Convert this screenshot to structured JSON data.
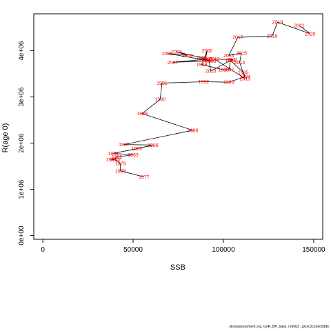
{
  "chart_data": {
    "type": "line",
    "xlabel": "SSB",
    "ylabel": "R(age 0)",
    "xlim": [
      -5000,
      155000
    ],
    "ylim": [
      -80000,
      4800000
    ],
    "x_ticks": [
      0,
      50000,
      100000,
      150000
    ],
    "x_tick_labels": [
      "0",
      "50000",
      "100000",
      "150000"
    ],
    "y_ticks": [
      0,
      1000000,
      2000000,
      3000000,
      4000000
    ],
    "y_tick_labels": [
      "0e+00",
      "1e+06",
      "2e+06",
      "3e+06",
      "4e+06"
    ],
    "grid": false,
    "line_color": "#000000",
    "label_color": "#ff0000",
    "points": [
      {
        "year": "1977",
        "x": 56000,
        "y": 1270000
      },
      {
        "year": "1978",
        "x": 43000,
        "y": 1400000
      },
      {
        "year": "1979",
        "x": 43000,
        "y": 1560000
      },
      {
        "year": "1980",
        "x": 40000,
        "y": 1650000
      },
      {
        "year": "1981",
        "x": 38000,
        "y": 1640000
      },
      {
        "year": "1982",
        "x": 41000,
        "y": 1700000
      },
      {
        "year": "1983",
        "x": 50000,
        "y": 1750000
      },
      {
        "year": "1984",
        "x": 39000,
        "y": 1780000
      },
      {
        "year": "1985",
        "x": 52000,
        "y": 1880000
      },
      {
        "year": "1986",
        "x": 61000,
        "y": 1960000
      },
      {
        "year": "1987",
        "x": 45000,
        "y": 1970000
      },
      {
        "year": "1988",
        "x": 83000,
        "y": 2280000
      },
      {
        "year": "1989",
        "x": 55000,
        "y": 2640000
      },
      {
        "year": "1990",
        "x": 65000,
        "y": 2950000
      },
      {
        "year": "1991",
        "x": 66000,
        "y": 3300000
      },
      {
        "year": "1992",
        "x": 89000,
        "y": 3330000
      },
      {
        "year": "1993",
        "x": 103000,
        "y": 3320000
      },
      {
        "year": "1994",
        "x": 112000,
        "y": 3440000
      },
      {
        "year": "1995",
        "x": 111000,
        "y": 3530000
      },
      {
        "year": "1996",
        "x": 104000,
        "y": 3790000
      },
      {
        "year": "1997",
        "x": 103000,
        "y": 3590000
      },
      {
        "year": "1998",
        "x": 100000,
        "y": 3590000
      },
      {
        "year": "1999",
        "x": 88000,
        "y": 3700000
      },
      {
        "year": "2000",
        "x": 91000,
        "y": 4000000
      },
      {
        "year": "2001",
        "x": 90000,
        "y": 3810000
      },
      {
        "year": "2002",
        "x": 88000,
        "y": 3850000
      },
      {
        "year": "2003",
        "x": 74000,
        "y": 3980000
      },
      {
        "year": "2004",
        "x": 80000,
        "y": 3900000
      },
      {
        "year": "2005",
        "x": 69000,
        "y": 3940000
      },
      {
        "year": "2006",
        "x": 93000,
        "y": 3780000
      },
      {
        "year": "2007",
        "x": 72000,
        "y": 3750000
      },
      {
        "year": "2008",
        "x": 91000,
        "y": 3820000
      },
      {
        "year": "2009",
        "x": 92000,
        "y": 3800000
      },
      {
        "year": "2010",
        "x": 93000,
        "y": 3560000
      },
      {
        "year": "2011",
        "x": 105000,
        "y": 3810000
      },
      {
        "year": "2012",
        "x": 95000,
        "y": 3820000
      },
      {
        "year": "2013",
        "x": 112000,
        "y": 3400000
      },
      {
        "year": "2014",
        "x": 109000,
        "y": 3750000
      },
      {
        "year": "2015",
        "x": 110000,
        "y": 3950000
      },
      {
        "year": "2016",
        "x": 103000,
        "y": 3900000
      },
      {
        "year": "2017",
        "x": 108000,
        "y": 4290000
      },
      {
        "year": "2018",
        "x": 127000,
        "y": 4320000
      },
      {
        "year": "2019",
        "x": 130000,
        "y": 4620000
      },
      {
        "year": "2020",
        "x": 148000,
        "y": 4370000
      },
      {
        "year": "2021",
        "x": 142000,
        "y": 4550000
      }
    ]
  },
  "footer": {
    "text": "stockassessment.org, GoR_BP_base, r16963 , git:ec2c2a0c6dde"
  }
}
